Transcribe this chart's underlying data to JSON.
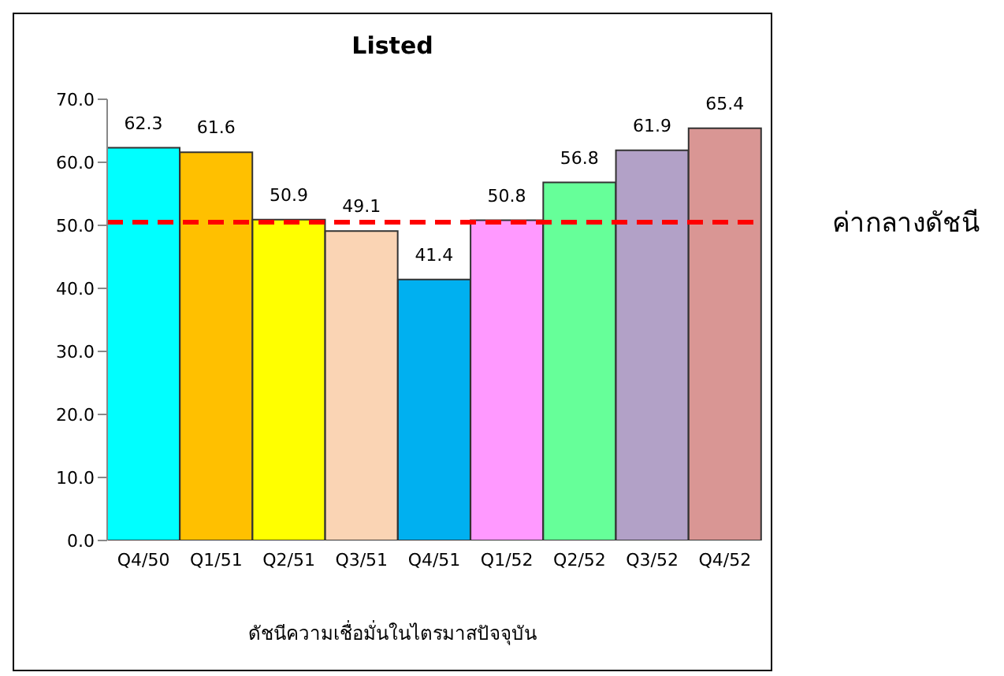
{
  "chart_data": {
    "type": "bar",
    "title": "Listed",
    "xlabel": "ดัชนีความเชื่อมั่นในไตรมาสปัจจุบัน",
    "categories": [
      "Q4/50",
      "Q1/51",
      "Q2/51",
      "Q3/51",
      "Q4/51",
      "Q1/52",
      "Q2/52",
      "Q3/52",
      "Q4/52"
    ],
    "values": [
      62.3,
      61.6,
      50.9,
      49.1,
      41.4,
      50.8,
      56.8,
      61.9,
      65.4
    ],
    "colors": [
      "#00ffff",
      "#ffc000",
      "#ffff00",
      "#fad4b4",
      "#00b0f0",
      "#ff99ff",
      "#66ff99",
      "#b2a1c7",
      "#d99694"
    ],
    "data_labels": true,
    "ylim": [
      0,
      70
    ],
    "yticks": [
      {
        "value": 0,
        "label": "0.0"
      },
      {
        "value": 10,
        "label": "10.0"
      },
      {
        "value": 20,
        "label": "20.0"
      },
      {
        "value": 30,
        "label": "30.0"
      },
      {
        "value": 40,
        "label": "40.0"
      },
      {
        "value": 50,
        "label": "50.0"
      },
      {
        "value": 60,
        "label": "60.0"
      },
      {
        "value": 70,
        "label": "70.0"
      }
    ],
    "ref_lines": [
      {
        "axis": "y",
        "value": 50.5,
        "label": "ค่ากลางดัชนี",
        "color": "#ff0000",
        "line_style": "dashed"
      }
    ],
    "grid": false,
    "legend": false
  }
}
